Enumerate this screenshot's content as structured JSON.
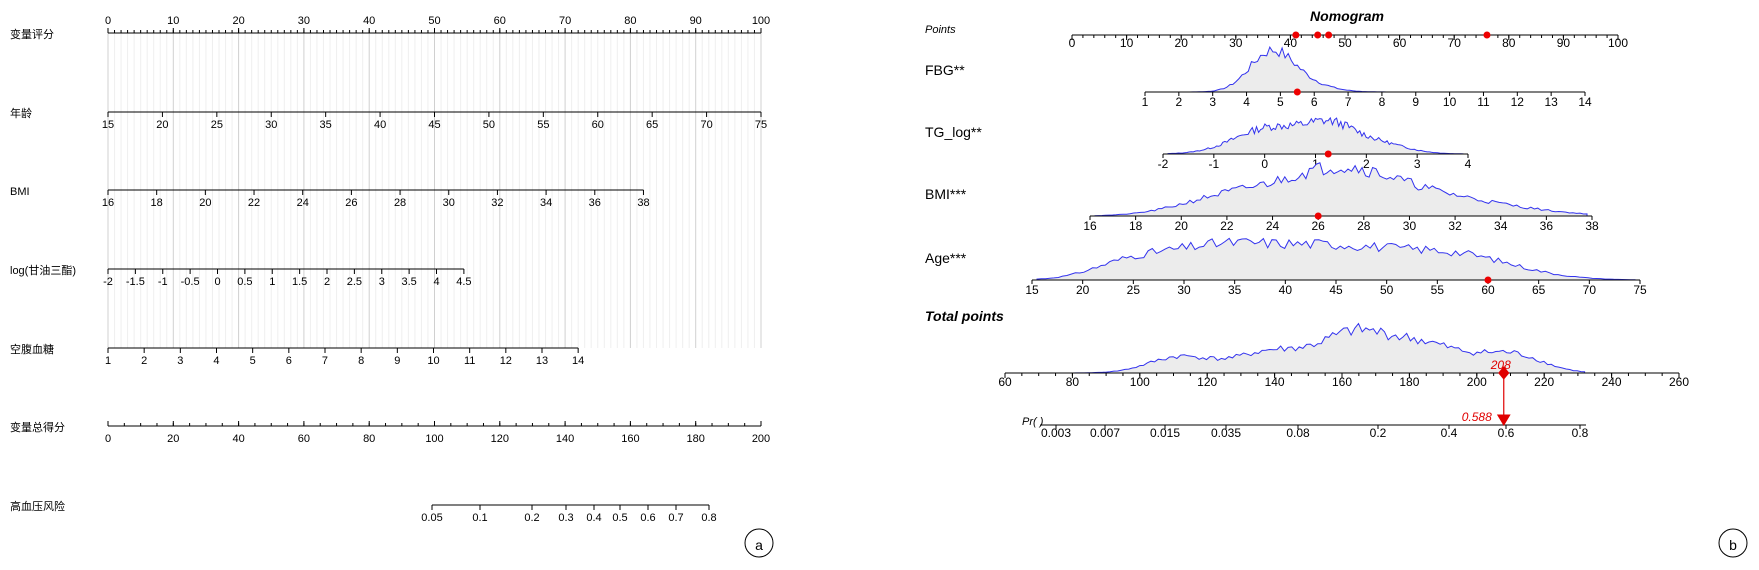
{
  "colors": {
    "axis": "#000000",
    "grid": "#d0d0d0",
    "density_line": "#3333ee",
    "density_fill": "#ececec",
    "highlight": "#e00000"
  },
  "chart_data": [
    {
      "type": "nomogram",
      "panel_label": "a",
      "rows": [
        {
          "label": "变量评分",
          "range": [
            0,
            100
          ],
          "ticks": [
            0,
            10,
            20,
            30,
            40,
            50,
            60,
            70,
            80,
            90,
            100
          ],
          "minor_step": 1
        },
        {
          "label": "年龄",
          "range": [
            15,
            75
          ],
          "ticks": [
            15,
            20,
            25,
            30,
            35,
            40,
            45,
            50,
            55,
            60,
            65,
            70,
            75
          ]
        },
        {
          "label": "BMI",
          "range": [
            16,
            38
          ],
          "ticks": [
            16,
            18,
            20,
            22,
            24,
            26,
            28,
            30,
            32,
            34,
            36,
            38
          ]
        },
        {
          "label": "log(甘油三酯)",
          "range": [
            -2,
            4.5
          ],
          "ticks": [
            "-2",
            "-1.5",
            "-1",
            "-0.5",
            "0",
            "0.5",
            "1",
            "1.5",
            "2",
            "2.5",
            "3",
            "3.5",
            "4",
            "4.5"
          ]
        },
        {
          "label": "空腹血糖",
          "range": [
            1,
            14
          ],
          "ticks": [
            1,
            2,
            3,
            4,
            5,
            6,
            7,
            8,
            9,
            10,
            11,
            12,
            13,
            14
          ]
        },
        {
          "label": "变量总得分",
          "range": [
            0,
            200
          ],
          "ticks": [
            0,
            20,
            40,
            60,
            80,
            100,
            120,
            140,
            160,
            180,
            200
          ],
          "minor_step": 5
        },
        {
          "label": "高血压风险",
          "ticks": [
            "0.05",
            "0.1",
            "0.2",
            "0.3",
            "0.4",
            "0.5",
            "0.6",
            "0.7",
            "0.8"
          ]
        }
      ]
    },
    {
      "type": "nomogram",
      "panel_label": "b",
      "title": "Nomogram",
      "points_row": {
        "label": "Points",
        "range": [
          0,
          100
        ],
        "ticks": [
          0,
          10,
          20,
          30,
          40,
          50,
          60,
          70,
          80,
          90,
          100
        ],
        "marked_points": [
          41,
          45,
          47,
          76
        ]
      },
      "rows": [
        {
          "label": "FBG**",
          "range": [
            1,
            14
          ],
          "ticks": [
            1,
            2,
            3,
            4,
            5,
            6,
            7,
            8,
            9,
            10,
            11,
            12,
            13,
            14
          ],
          "marked_value": 5.5
        },
        {
          "label": "TG_log**",
          "range": [
            -2,
            4
          ],
          "ticks": [
            "-2",
            "-1",
            "0",
            "1",
            "2",
            "3",
            "4"
          ],
          "marked_value": 1.25
        },
        {
          "label": "BMI***",
          "range": [
            16,
            38
          ],
          "ticks": [
            16,
            18,
            20,
            22,
            24,
            26,
            28,
            30,
            32,
            34,
            36,
            38
          ],
          "marked_value": 26
        },
        {
          "label": "Age***",
          "range": [
            15,
            75
          ],
          "ticks": [
            15,
            20,
            25,
            30,
            35,
            40,
            45,
            50,
            55,
            60,
            65,
            70,
            75
          ],
          "marked_value": 60
        }
      ],
      "total_row": {
        "label": "Total points",
        "range": [
          60,
          260
        ],
        "ticks": [
          60,
          80,
          100,
          120,
          140,
          160,
          180,
          200,
          220,
          240,
          260
        ],
        "marked_value": 208,
        "marked_label": "208"
      },
      "prob_row": {
        "label": "Pr( )",
        "ticks": [
          "0.003",
          "0.007",
          "0.015",
          "0.035",
          "0.08",
          "0.2",
          "0.4",
          "0.6",
          "0.8"
        ],
        "marked_value": 0.588,
        "marked_label": "0.588"
      }
    }
  ]
}
